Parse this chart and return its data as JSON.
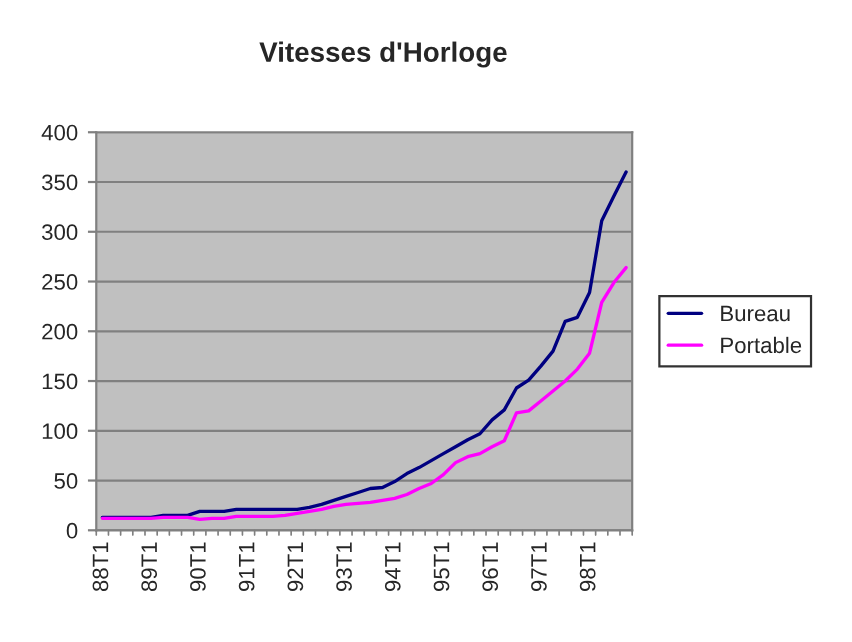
{
  "chart_data": {
    "type": "line",
    "title": "Vitesses d'Horloge",
    "categories": [
      "88T1",
      null,
      null,
      null,
      "89T1",
      null,
      null,
      null,
      "90T1",
      null,
      null,
      null,
      "91T1",
      null,
      null,
      null,
      "92T1",
      null,
      null,
      null,
      "93T1",
      null,
      null,
      null,
      "94T1",
      null,
      null,
      null,
      "95T1",
      null,
      null,
      null,
      "96T1",
      null,
      null,
      null,
      "97T1",
      null,
      null,
      null,
      "98T1",
      null,
      null,
      null
    ],
    "series": [
      {
        "name": "Bureau",
        "color": "#000080",
        "values": [
          13,
          13,
          13,
          13,
          13,
          15,
          15,
          15,
          19,
          19,
          19,
          21,
          21,
          21,
          21,
          21,
          21,
          23,
          26,
          30,
          34,
          38,
          42,
          43,
          49,
          57,
          63,
          70,
          77,
          84,
          91,
          97,
          111,
          121,
          143,
          151,
          165,
          180,
          210,
          214,
          239,
          311,
          336,
          360
        ]
      },
      {
        "name": "Portable",
        "color": "#ff00ff",
        "values": [
          12,
          12,
          12,
          12,
          12,
          13,
          13,
          13,
          11,
          12,
          12,
          14,
          14,
          14,
          14,
          15,
          17,
          19,
          21,
          24,
          26,
          27,
          28,
          30,
          32,
          36,
          42,
          47,
          56,
          68,
          74,
          77,
          84,
          90,
          118,
          120,
          130,
          140,
          150,
          162,
          178,
          229,
          249,
          264
        ]
      }
    ],
    "ylim": [
      0,
      400
    ],
    "yticks": [
      0,
      50,
      100,
      150,
      200,
      250,
      300,
      350,
      400
    ],
    "grid": "y",
    "legend": "right"
  }
}
